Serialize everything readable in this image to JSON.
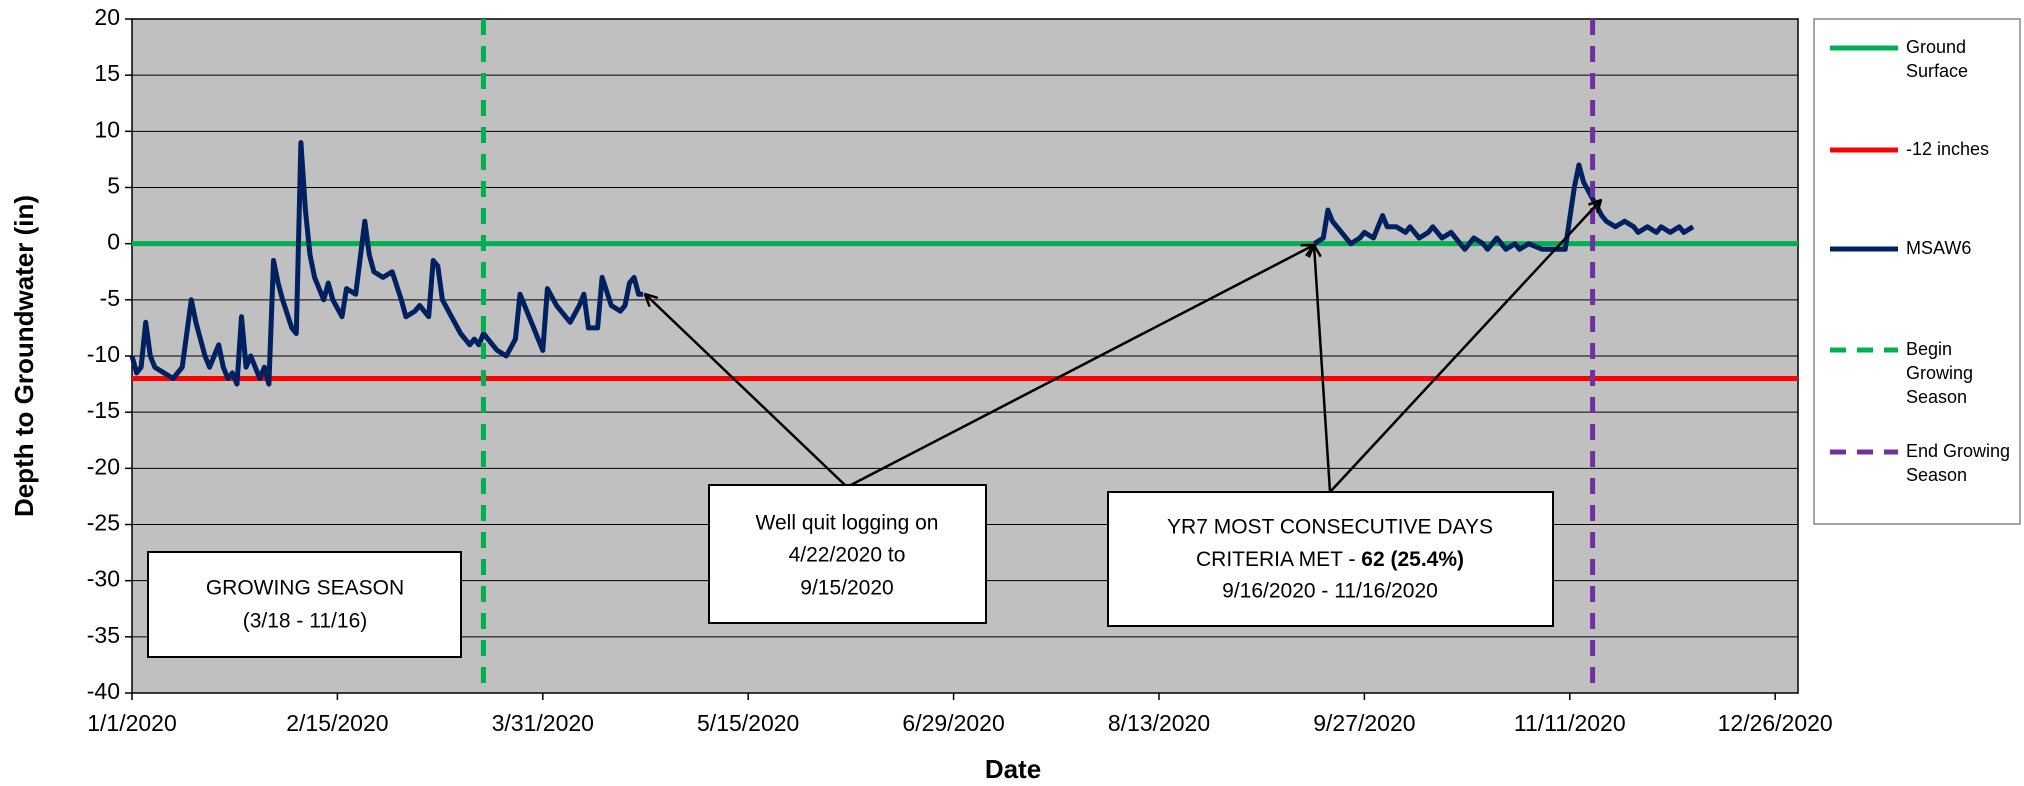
{
  "chart_data": {
    "type": "line",
    "xlabel": "Date",
    "ylabel": "Depth to Groundwater (in)",
    "xlim": [
      "1/1/2020",
      "12/31/2020"
    ],
    "xticks": [
      "1/1/2020",
      "2/15/2020",
      "3/31/2020",
      "5/15/2020",
      "6/29/2020",
      "8/13/2020",
      "9/27/2020",
      "11/11/2020",
      "12/26/2020"
    ],
    "ylim": [
      -40,
      20
    ],
    "yticks": [
      20,
      15,
      10,
      5,
      0,
      -5,
      -10,
      -15,
      -20,
      -25,
      -30,
      -35,
      -40
    ],
    "grid": true,
    "legend": "right",
    "series": [
      {
        "name": "Ground Surface",
        "color": "#00b050",
        "y": 0
      },
      {
        "name": "-12 inches",
        "color": "#ff0000",
        "y": -12
      },
      {
        "name": "MSAW6",
        "color": "#002060",
        "x": [
          "1/1/2020",
          "1/2/2020",
          "1/3/2020",
          "1/4/2020",
          "1/5/2020",
          "1/6/2020",
          "1/8/2020",
          "1/10/2020",
          "1/12/2020",
          "1/14/2020",
          "1/15/2020",
          "1/17/2020",
          "1/18/2020",
          "1/20/2020",
          "1/21/2020",
          "1/22/2020",
          "1/23/2020",
          "1/24/2020",
          "1/25/2020",
          "1/26/2020",
          "1/27/2020",
          "1/29/2020",
          "1/30/2020",
          "1/31/2020",
          "2/1/2020",
          "2/2/2020",
          "2/3/2020",
          "2/5/2020",
          "2/6/2020",
          "2/7/2020",
          "2/8/2020",
          "2/9/2020",
          "2/10/2020",
          "2/12/2020",
          "2/13/2020",
          "2/14/2020",
          "2/16/2020",
          "2/17/2020",
          "2/19/2020",
          "2/21/2020",
          "2/22/2020",
          "2/23/2020",
          "2/25/2020",
          "2/27/2020",
          "2/29/2020",
          "3/1/2020",
          "3/3/2020",
          "3/4/2020",
          "3/6/2020",
          "3/7/2020",
          "3/8/2020",
          "3/9/2020",
          "3/11/2020",
          "3/13/2020",
          "3/15/2020",
          "3/16/2020",
          "3/17/2020",
          "3/18/2020",
          "3/20/2020",
          "3/21/2020",
          "3/23/2020",
          "3/25/2020",
          "3/26/2020",
          "3/28/2020",
          "3/29/2020",
          "3/31/2020",
          "4/1/2020",
          "4/3/2020",
          "4/5/2020",
          "4/6/2020",
          "4/8/2020",
          "4/9/2020",
          "4/10/2020",
          "4/12/2020",
          "4/13/2020",
          "4/15/2020",
          "4/17/2020",
          "4/18/2020",
          "4/19/2020",
          "4/20/2020",
          "4/21/2020",
          "4/22/2020",
          "9/15/2020",
          "9/16/2020",
          "9/18/2020",
          "9/19/2020",
          "9/20/2020",
          "9/22/2020",
          "9/24/2020",
          "9/26/2020",
          "9/27/2020",
          "9/29/2020",
          "10/1/2020",
          "10/2/2020",
          "10/4/2020",
          "10/6/2020",
          "10/7/2020",
          "10/9/2020",
          "10/11/2020",
          "10/12/2020",
          "10/14/2020",
          "10/16/2020",
          "10/18/2020",
          "10/19/2020",
          "10/21/2020",
          "10/23/2020",
          "10/24/2020",
          "10/26/2020",
          "10/28/2020",
          "10/30/2020",
          "10/31/2020",
          "11/2/2020",
          "11/5/2020",
          "11/8/2020",
          "11/10/2020",
          "11/12/2020",
          "11/13/2020",
          "11/14/2020",
          "11/16/2020",
          "11/18/2020",
          "11/19/2020",
          "11/21/2020",
          "11/23/2020",
          "11/25/2020",
          "11/26/2020",
          "11/28/2020",
          "11/30/2020",
          "12/1/2020",
          "12/3/2020",
          "12/5/2020",
          "12/6/2020",
          "12/8/2020"
        ],
        "values": [
          -10,
          -11.5,
          -11,
          -7,
          -10,
          -11,
          -11.5,
          -12,
          -11,
          -5,
          -7,
          -10,
          -11,
          -9,
          -11,
          -12,
          -11.5,
          -12.5,
          -6.5,
          -11,
          -10,
          -12,
          -11,
          -12.5,
          -1.5,
          -3.5,
          -5,
          -7.5,
          -8,
          9,
          3,
          -1,
          -3,
          -5,
          -3.5,
          -5,
          -6.5,
          -4,
          -4.5,
          2,
          -1,
          -2.5,
          -3,
          -2.5,
          -5,
          -6.5,
          -6,
          -5.5,
          -6.5,
          -1.5,
          -2,
          -5,
          -6.5,
          -8,
          -9,
          -8.5,
          -9,
          -8,
          -9,
          -9.5,
          -10,
          -8.5,
          -4.5,
          -6.5,
          -7.5,
          -9.5,
          -4,
          -5.5,
          -6.5,
          -7,
          -5.5,
          -4.5,
          -7.5,
          -7.5,
          -3,
          -5.5,
          -6,
          -5.5,
          -3.5,
          -3,
          -4.5,
          -4.5,
          null,
          0,
          0.5,
          3,
          2,
          1,
          0,
          0.5,
          1,
          0.5,
          2.5,
          1.5,
          1.5,
          1,
          1.5,
          0.5,
          1,
          1.5,
          0.5,
          1,
          0,
          -0.5,
          0.5,
          0,
          -0.5,
          0.5,
          -0.5,
          0,
          -0.5,
          0,
          -0.5,
          -0.5,
          -0.5,
          5,
          7,
          5.5,
          4,
          2.5,
          2,
          1.5,
          2,
          1.5,
          1,
          1.5,
          1,
          1.5,
          1,
          1.5,
          1,
          1.5
        ]
      },
      {
        "name": "Begin Growing Season",
        "color": "#00b050",
        "x": "3/18/2020",
        "dash": true
      },
      {
        "name": "End Growing Season",
        "color": "#7030a0",
        "x": "11/16/2020",
        "dash": true
      }
    ],
    "annotations": [
      {
        "lines": [
          "GROWING SEASON",
          "(3/18 - 11/16)"
        ]
      },
      {
        "lines": [
          "Well quit logging on",
          "4/22/2020 to",
          "9/15/2020"
        ]
      },
      {
        "lines": [
          "YR7 MOST CONSECUTIVE DAYS",
          "CRITERIA MET - ",
          "62 (25.4%)",
          "9/16/2020 - 11/16/2020"
        ]
      }
    ]
  }
}
